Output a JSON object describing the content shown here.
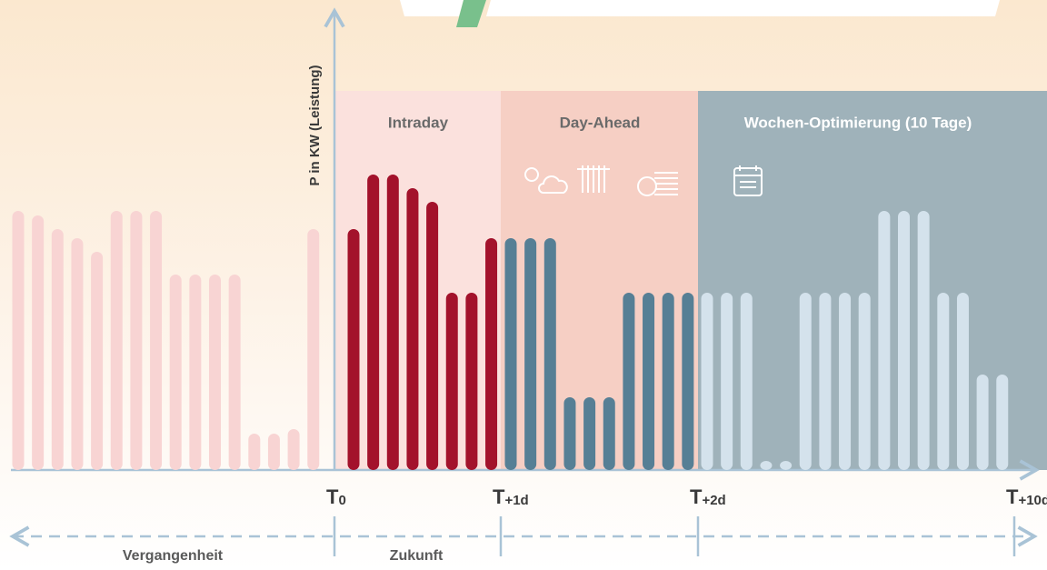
{
  "chart_data": {
    "type": "bar",
    "y_label": "P in KW (Leistung)",
    "ylim": [
      0,
      320
    ],
    "series": [
      {
        "name": "Vergangenheit",
        "color": "#f8d4d3",
        "values": [
          285,
          280,
          265,
          255,
          240,
          285,
          285,
          285,
          215,
          215,
          215,
          215,
          40,
          40,
          45,
          265
        ]
      },
      {
        "name": "Intraday",
        "color": "#a3122b",
        "values": [
          265,
          325,
          325,
          310,
          295,
          195,
          195,
          255
        ]
      },
      {
        "name": "Day-Ahead",
        "color": "#567f95",
        "values": [
          255,
          255,
          255,
          80,
          80,
          80,
          195,
          195,
          195,
          195
        ]
      },
      {
        "name": "Wochen-Optimierung (10 Tage)",
        "color": "#d4e2ec",
        "values": [
          195,
          195,
          195,
          10,
          10,
          195,
          195,
          195,
          195,
          285,
          285,
          285,
          195,
          195,
          105,
          105
        ]
      }
    ],
    "markers": [
      {
        "symbol": "T",
        "sub": "0"
      },
      {
        "symbol": "T",
        "sub": "+1d"
      },
      {
        "symbol": "T",
        "sub": "+2d"
      },
      {
        "symbol": "T",
        "sub": "+10d"
      }
    ],
    "periods": [
      "Zukunft"
    ]
  }
}
